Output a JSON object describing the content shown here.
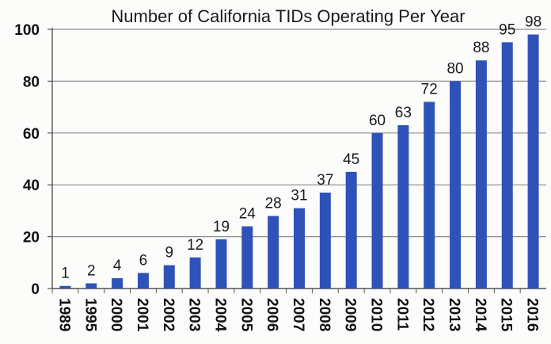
{
  "chart_data": {
    "type": "bar",
    "title": "Number of California TIDs Operating Per Year",
    "xlabel": "",
    "ylabel": "",
    "ylim": [
      0,
      100
    ],
    "yticks": [
      0,
      20,
      40,
      60,
      80,
      100
    ],
    "grid": true,
    "categories": [
      "1989",
      "1995",
      "2000",
      "2001",
      "2002",
      "2003",
      "2004",
      "2005",
      "2006",
      "2007",
      "2008",
      "2009",
      "2010",
      "2011",
      "2012",
      "2013",
      "2014",
      "2015",
      "2016"
    ],
    "values": [
      1,
      2,
      4,
      6,
      9,
      12,
      19,
      24,
      28,
      31,
      37,
      45,
      60,
      63,
      72,
      80,
      88,
      95,
      98
    ],
    "bar_color": "#2e52b8"
  }
}
